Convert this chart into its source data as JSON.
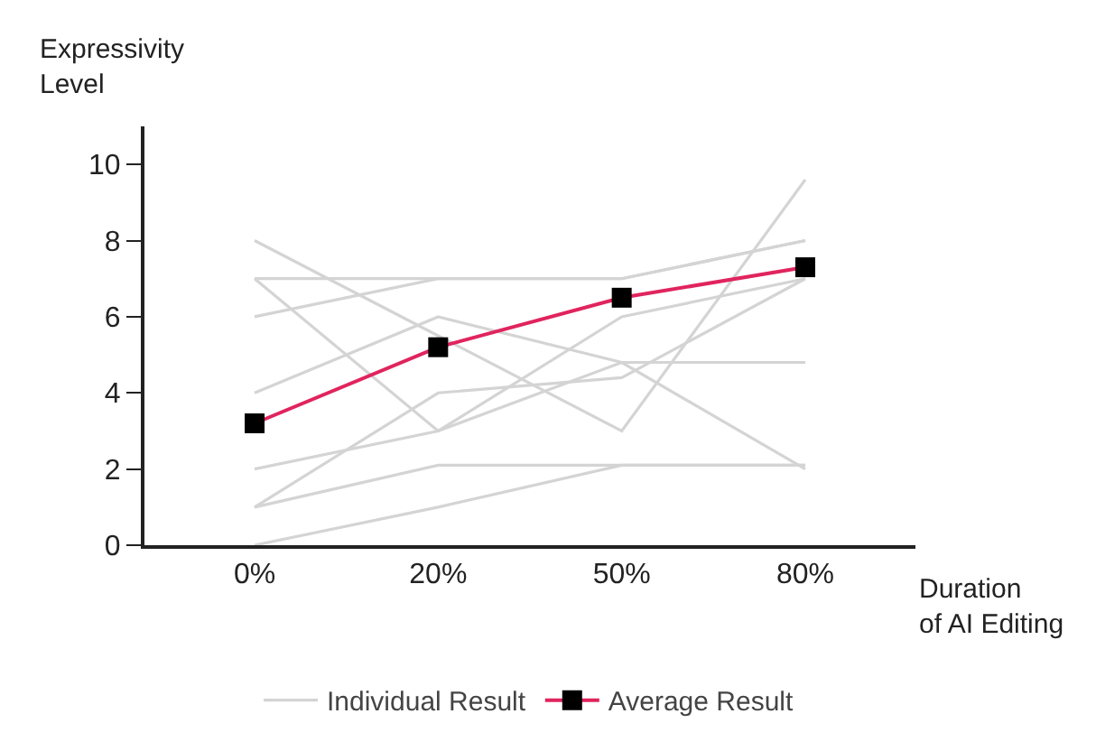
{
  "chart_data": {
    "type": "line",
    "ylabel": "Expressivity\nLevel",
    "xlabel": "Duration\nof AI Editing",
    "categories": [
      "0%",
      "20%",
      "50%",
      "80%"
    ],
    "series": [
      {
        "name": "Individual Result",
        "color": "#d4d4d4",
        "values": [
          7,
          7,
          7,
          8
        ]
      },
      {
        "color": "#d4d4d4",
        "values": [
          6,
          7,
          7,
          8
        ]
      },
      {
        "color": "#d4d4d4",
        "values": [
          8,
          5.5,
          3,
          9.6
        ]
      },
      {
        "color": "#d4d4d4",
        "values": [
          7,
          3,
          4.8,
          4.8
        ]
      },
      {
        "color": "#d4d4d4",
        "values": [
          4,
          6,
          4.8,
          2
        ]
      },
      {
        "color": "#d4d4d4",
        "values": [
          2,
          3,
          6,
          7
        ]
      },
      {
        "color": "#d4d4d4",
        "values": [
          1,
          4,
          4.4,
          7
        ]
      },
      {
        "color": "#d4d4d4",
        "values": [
          1,
          2.1,
          2.1,
          2.1
        ]
      },
      {
        "color": "#d4d4d4",
        "values": [
          0,
          1,
          2.1,
          2.1
        ]
      },
      {
        "name": "Average Result",
        "color": "#e0245e",
        "marker": "square",
        "values": [
          3.2,
          5.2,
          6.5,
          7.3
        ]
      }
    ],
    "ylim": [
      0,
      11
    ],
    "yticks": [
      0,
      2,
      4,
      6,
      8,
      10
    ],
    "grid": false,
    "legend": "bottom"
  }
}
